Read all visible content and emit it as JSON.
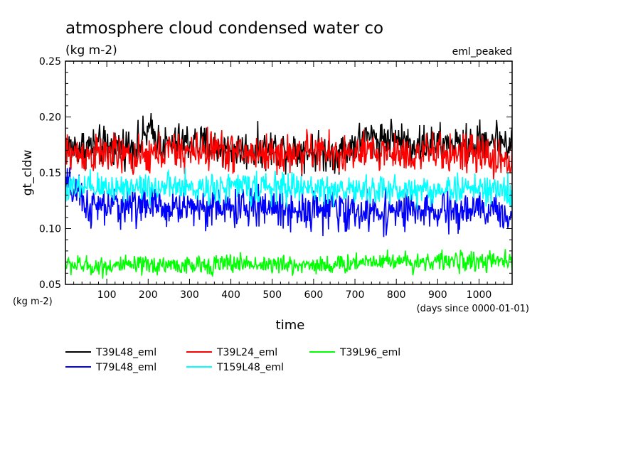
{
  "chart_data": {
    "type": "line",
    "title": "atmosphere cloud condensed water co",
    "subtitle": "(kg m-2)",
    "annotation": "eml_peaked",
    "xlabel": "time",
    "x_units": "(days since 0000-01-01)",
    "ylabel": "gt_cldw",
    "y_units": "(kg m-2)",
    "xlim": [
      0,
      1080
    ],
    "ylim": [
      0.05,
      0.25
    ],
    "x_ticks": [
      100,
      200,
      300,
      400,
      500,
      600,
      700,
      800,
      900,
      1000
    ],
    "x_tick_labels": [
      "100",
      "200",
      "300",
      "400",
      "500",
      "600",
      "700",
      "800",
      "900",
      "1000"
    ],
    "y_ticks": [
      0.05,
      0.1,
      0.15,
      0.2,
      0.25
    ],
    "y_tick_labels": [
      "0.05",
      "0.10",
      "0.15",
      "0.20",
      "0.25"
    ],
    "grid": false,
    "legend_position": "bottom",
    "series": [
      {
        "name": "T39L48_eml",
        "color": "#000000",
        "x": [
          0,
          60,
          120,
          180,
          200,
          240,
          300,
          360,
          420,
          480,
          540,
          600,
          660,
          720,
          780,
          840,
          900,
          960,
          1000,
          1040,
          1080
        ],
        "y": [
          0.172,
          0.174,
          0.173,
          0.176,
          0.188,
          0.174,
          0.178,
          0.173,
          0.17,
          0.171,
          0.172,
          0.169,
          0.168,
          0.18,
          0.182,
          0.176,
          0.175,
          0.174,
          0.178,
          0.18,
          0.175
        ]
      },
      {
        "name": "T39L24_eml",
        "color": "#ff0000",
        "x": [
          0,
          60,
          120,
          180,
          240,
          300,
          360,
          420,
          480,
          540,
          600,
          660,
          720,
          780,
          840,
          900,
          960,
          1020,
          1080
        ],
        "y": [
          0.168,
          0.166,
          0.167,
          0.162,
          0.17,
          0.168,
          0.172,
          0.167,
          0.168,
          0.166,
          0.17,
          0.166,
          0.167,
          0.169,
          0.166,
          0.168,
          0.167,
          0.165,
          0.16
        ]
      },
      {
        "name": "T39L96_eml",
        "color": "#00ff00",
        "x": [
          0,
          60,
          120,
          180,
          240,
          300,
          360,
          420,
          480,
          540,
          600,
          660,
          720,
          780,
          840,
          900,
          960,
          1020,
          1080
        ],
        "y": [
          0.068,
          0.066,
          0.067,
          0.066,
          0.068,
          0.066,
          0.068,
          0.069,
          0.068,
          0.067,
          0.068,
          0.067,
          0.071,
          0.072,
          0.07,
          0.071,
          0.071,
          0.07,
          0.071
        ]
      },
      {
        "name": "T79L48_eml",
        "color": "#0000ff",
        "x": [
          0,
          60,
          120,
          180,
          240,
          300,
          360,
          420,
          480,
          540,
          600,
          660,
          720,
          780,
          840,
          900,
          960,
          1020,
          1080
        ],
        "y": [
          0.14,
          0.118,
          0.12,
          0.122,
          0.118,
          0.12,
          0.119,
          0.118,
          0.12,
          0.117,
          0.118,
          0.116,
          0.114,
          0.116,
          0.115,
          0.114,
          0.116,
          0.116,
          0.112
        ]
      },
      {
        "name": "T159L48_eml",
        "color": "#00ffff",
        "x": [
          0,
          60,
          120,
          180,
          240,
          300,
          360,
          420,
          480,
          540,
          600,
          660,
          720,
          780,
          840,
          900,
          960,
          1020,
          1080
        ],
        "y": [
          0.135,
          0.136,
          0.137,
          0.138,
          0.137,
          0.136,
          0.137,
          0.138,
          0.136,
          0.137,
          0.136,
          0.135,
          0.134,
          0.135,
          0.134,
          0.135,
          0.136,
          0.135,
          0.133
        ]
      }
    ]
  }
}
